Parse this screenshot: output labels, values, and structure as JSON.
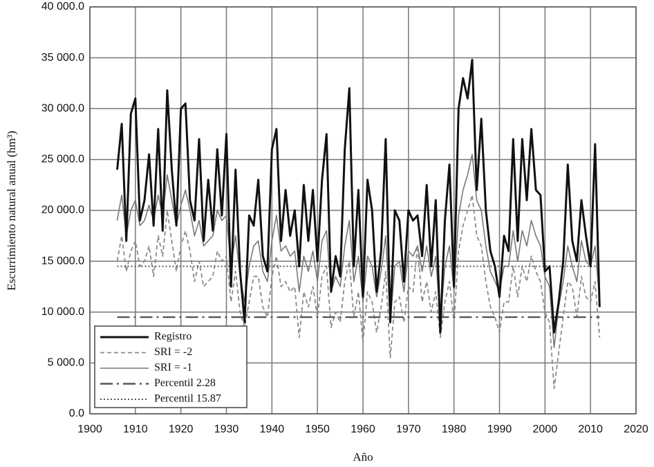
{
  "chart_data": {
    "type": "line",
    "xlabel": "Año",
    "ylabel": "Escurrimiento natural anual (hm³)",
    "x": [
      1906,
      1907,
      1908,
      1909,
      1910,
      1911,
      1912,
      1913,
      1914,
      1915,
      1916,
      1917,
      1918,
      1919,
      1920,
      1921,
      1922,
      1923,
      1924,
      1925,
      1926,
      1927,
      1928,
      1929,
      1930,
      1931,
      1932,
      1933,
      1934,
      1935,
      1936,
      1937,
      1938,
      1939,
      1940,
      1941,
      1942,
      1943,
      1944,
      1945,
      1946,
      1947,
      1948,
      1949,
      1950,
      1951,
      1952,
      1953,
      1954,
      1955,
      1956,
      1957,
      1958,
      1959,
      1960,
      1961,
      1962,
      1963,
      1964,
      1965,
      1966,
      1967,
      1968,
      1969,
      1970,
      1971,
      1972,
      1973,
      1974,
      1975,
      1976,
      1977,
      1978,
      1979,
      1980,
      1981,
      1982,
      1983,
      1984,
      1985,
      1986,
      1987,
      1988,
      1989,
      1990,
      1991,
      1992,
      1993,
      1994,
      1995,
      1996,
      1997,
      1998,
      1999,
      2000,
      2001,
      2002,
      2003,
      2004,
      2005,
      2006,
      2007,
      2008,
      2009,
      2010,
      2011,
      2012
    ],
    "series": [
      {
        "name": "Registro",
        "color": "#111111",
        "width": 3,
        "dash": "none",
        "values": [
          24000,
          28500,
          17000,
          29500,
          31000,
          19000,
          21000,
          25500,
          18500,
          28000,
          18000,
          31800,
          24000,
          18500,
          30000,
          30500,
          21000,
          19000,
          27000,
          17000,
          23000,
          18000,
          26000,
          19500,
          27500,
          12500,
          24000,
          14000,
          9000,
          19500,
          18500,
          23000,
          15500,
          14000,
          26000,
          28000,
          17000,
          22000,
          17500,
          20000,
          14500,
          22500,
          17000,
          22000,
          15000,
          23000,
          27500,
          12000,
          15500,
          13500,
          26000,
          32000,
          14500,
          22000,
          11500,
          23000,
          20000,
          12000,
          16000,
          27000,
          9000,
          20000,
          19000,
          13000,
          20000,
          19000,
          19500,
          15500,
          22500,
          14500,
          21000,
          8000,
          19000,
          24500,
          12500,
          30000,
          33000,
          31000,
          34800,
          22000,
          29000,
          20000,
          16000,
          14500,
          11500,
          17500,
          16000,
          27000,
          17000,
          27000,
          21000,
          28000,
          22000,
          21500,
          14000,
          14500,
          8000,
          11000,
          15000,
          24500,
          17000,
          15000,
          21000,
          17500,
          14500,
          26500,
          10500
        ]
      },
      {
        "name": "SRI = -2",
        "color": "#8a8a8a",
        "width": 1.8,
        "dash": "6 4",
        "values": [
          15000,
          17500,
          14000,
          16000,
          17000,
          14500,
          15000,
          16500,
          13500,
          17500,
          15500,
          20000,
          17000,
          14000,
          16500,
          18000,
          16000,
          13000,
          15000,
          12500,
          13000,
          13500,
          16000,
          15000,
          15500,
          11000,
          14000,
          10000,
          8500,
          11000,
          13500,
          13500,
          10500,
          9500,
          13500,
          15500,
          12500,
          13000,
          12000,
          12500,
          7500,
          12000,
          10500,
          12500,
          9500,
          13500,
          14500,
          8500,
          10000,
          9000,
          13000,
          15000,
          9500,
          12000,
          7000,
          12000,
          11000,
          8000,
          10500,
          14000,
          5500,
          11000,
          11500,
          9000,
          12500,
          12000,
          16500,
          11000,
          13000,
          10000,
          12000,
          7500,
          11000,
          13000,
          9000,
          16000,
          18500,
          20000,
          21500,
          17500,
          16500,
          13000,
          10500,
          9500,
          8000,
          11000,
          11000,
          14500,
          11500,
          14500,
          13000,
          15500,
          14000,
          13000,
          10000,
          9000,
          2500,
          6000,
          9500,
          13000,
          12500,
          9500,
          13500,
          11500,
          11000,
          13000,
          7500
        ]
      },
      {
        "name": "SRI = -1",
        "color": "#777777",
        "width": 1.6,
        "dash": "none",
        "values": [
          19000,
          21500,
          17500,
          20000,
          21000,
          18500,
          19000,
          20500,
          19000,
          21500,
          19500,
          23500,
          21000,
          18500,
          20500,
          22000,
          20000,
          17500,
          19000,
          16500,
          17000,
          17500,
          20000,
          19000,
          19500,
          14500,
          17500,
          13500,
          11000,
          14500,
          16500,
          17000,
          14000,
          13000,
          17000,
          19500,
          16000,
          16500,
          15500,
          16000,
          12000,
          15500,
          14000,
          16000,
          13000,
          17000,
          18000,
          12000,
          13500,
          12500,
          16500,
          19000,
          13000,
          15500,
          11000,
          15500,
          14500,
          11500,
          14000,
          17500,
          9000,
          14500,
          15000,
          12000,
          16000,
          15500,
          16500,
          14000,
          16500,
          13500,
          15500,
          9000,
          14500,
          16500,
          12000,
          19500,
          22000,
          23500,
          25500,
          21000,
          20000,
          16500,
          14000,
          13000,
          12000,
          14500,
          14500,
          18000,
          15000,
          18000,
          16500,
          19000,
          17500,
          16500,
          13500,
          12500,
          6500,
          10500,
          13000,
          16500,
          14500,
          13000,
          17000,
          15000,
          14500,
          16500,
          11000
        ]
      },
      {
        "name": "Percentil 2.28",
        "color": "#555555",
        "width": 2.4,
        "dash": "18 6 3 6",
        "x": [
          1906,
          2012
        ],
        "values": [
          9500,
          9500
        ]
      },
      {
        "name": "Percentil 15.87",
        "color": "#555555",
        "width": 2,
        "dash": "2 3",
        "x": [
          1906,
          2012
        ],
        "values": [
          14500,
          14500
        ]
      }
    ],
    "xlim": [
      1900,
      2020
    ],
    "xticks": [
      1900,
      1910,
      1920,
      1930,
      1940,
      1950,
      1960,
      1970,
      1980,
      1990,
      2000,
      2010,
      2020
    ],
    "ylim": [
      0,
      40000
    ],
    "yticks": [
      {
        "value": 0,
        "label": "0.0"
      },
      {
        "value": 5000,
        "label": "5 000.0"
      },
      {
        "value": 10000,
        "label": "10 000.0"
      },
      {
        "value": 15000,
        "label": "15 000.0"
      },
      {
        "value": 20000,
        "label": "20 000.0"
      },
      {
        "value": 25000,
        "label": "25 000.0"
      },
      {
        "value": 30000,
        "label": "30 000.0"
      },
      {
        "value": 35000,
        "label": "35 000.0"
      },
      {
        "value": 40000,
        "label": "40 000.0"
      }
    ],
    "grid": true,
    "legend": "lower left"
  }
}
